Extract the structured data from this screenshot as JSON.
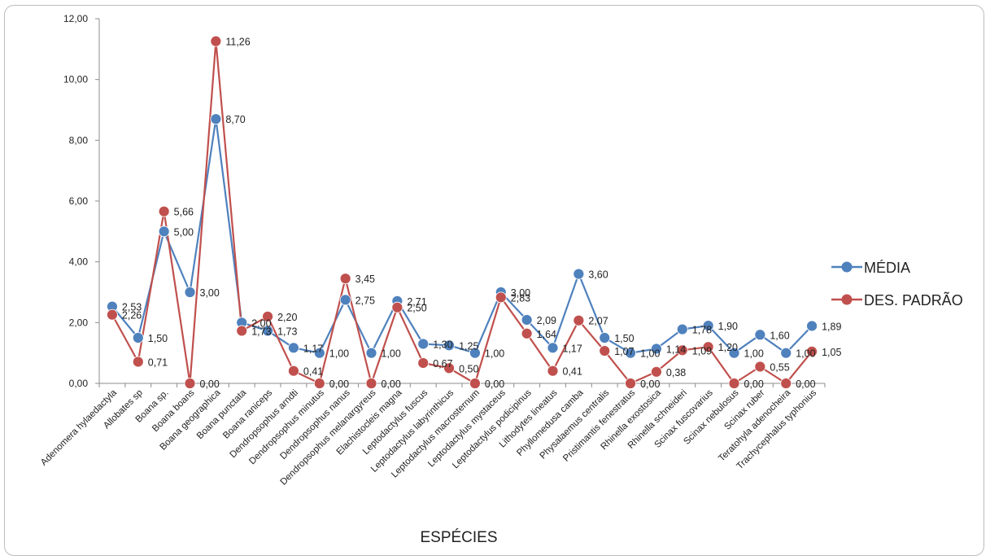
{
  "chart_data": {
    "type": "line",
    "title": "",
    "xlabel": "ESPÉCIES",
    "ylabel": "",
    "ylim": [
      0,
      12
    ],
    "yticks": [
      "0,00",
      "2,00",
      "4,00",
      "6,00",
      "8,00",
      "10,00",
      "12,00"
    ],
    "grid": false,
    "legend_position": "right",
    "categories": [
      "Adenomera hylaedactyla",
      "Allobates sp",
      "Boana sp.",
      "Boana boans",
      "Boana geographica",
      "Boana punctata",
      "Boana raniceps",
      "Dendropsophus arndti",
      "Dendropsophus minutus",
      "Dendropsophus nanus",
      "Dendropsophus melanargyreus",
      "Elachistocleis magna",
      "Leptodactylus fuscus",
      "Leptodactylus labyrinthicus",
      "Leptodactylus macrosternum",
      "Leptodactylus mystaceus",
      "Leptodactylus podicipinus",
      "Lithodytes lineatus",
      "Phyllomedusa camba",
      "Physalaemus centralis",
      "Pristimantis fenestratus",
      "Rhinella exostosica",
      "Rhinella schneideri",
      "Scinax fuscovarius",
      "Scinax nebulosus",
      "Scinax ruber",
      "Teratohyla adenocheira",
      "Trachycephalus typhonius"
    ],
    "series": [
      {
        "name": "MÉDIA",
        "color": "#4f81bd",
        "values": [
          2.53,
          1.5,
          5.0,
          3.0,
          8.7,
          2.0,
          1.73,
          1.17,
          1.0,
          2.75,
          1.0,
          2.71,
          1.3,
          1.25,
          1.0,
          3.0,
          2.09,
          1.17,
          3.6,
          1.5,
          1.0,
          1.14,
          1.78,
          1.9,
          1.0,
          1.6,
          1.0,
          1.89
        ],
        "labels": [
          "2,53",
          "1,50",
          "5,00",
          "3,00",
          "8,70",
          "2,00",
          "1,73",
          "1,17",
          "1,00",
          "2,75",
          "1,00",
          "2,71",
          "1,30",
          "1,25",
          "1,00",
          "3,00",
          "2,09",
          "1,17",
          "3,60",
          "1,50",
          "1,00",
          "1,14",
          "1,78",
          "1,90",
          "1,00",
          "1,60",
          "1,00",
          "1,89"
        ]
      },
      {
        "name": "DES. PADRÃO",
        "color": "#c0504d",
        "values": [
          2.26,
          0.71,
          5.66,
          0.0,
          11.26,
          1.73,
          2.2,
          0.41,
          0.0,
          3.45,
          0.0,
          2.5,
          0.67,
          0.5,
          0.0,
          2.83,
          1.64,
          0.41,
          2.07,
          1.07,
          0.0,
          0.38,
          1.09,
          1.2,
          0.0,
          0.55,
          0.0,
          1.05
        ],
        "labels": [
          "2,26",
          "0,71",
          "5,66",
          "0,00",
          "11,26",
          "1,73",
          "2,20",
          "0,41",
          "0,00",
          "3,45",
          "0,00",
          "2,50",
          "0,67",
          "0,50",
          "0,00",
          "2,83",
          "1,64",
          "0,41",
          "2,07",
          "1,07",
          "0,00",
          "0,38",
          "1,09",
          "1,20",
          "0,00",
          "0,55",
          "0,00",
          "1,05"
        ]
      }
    ]
  }
}
